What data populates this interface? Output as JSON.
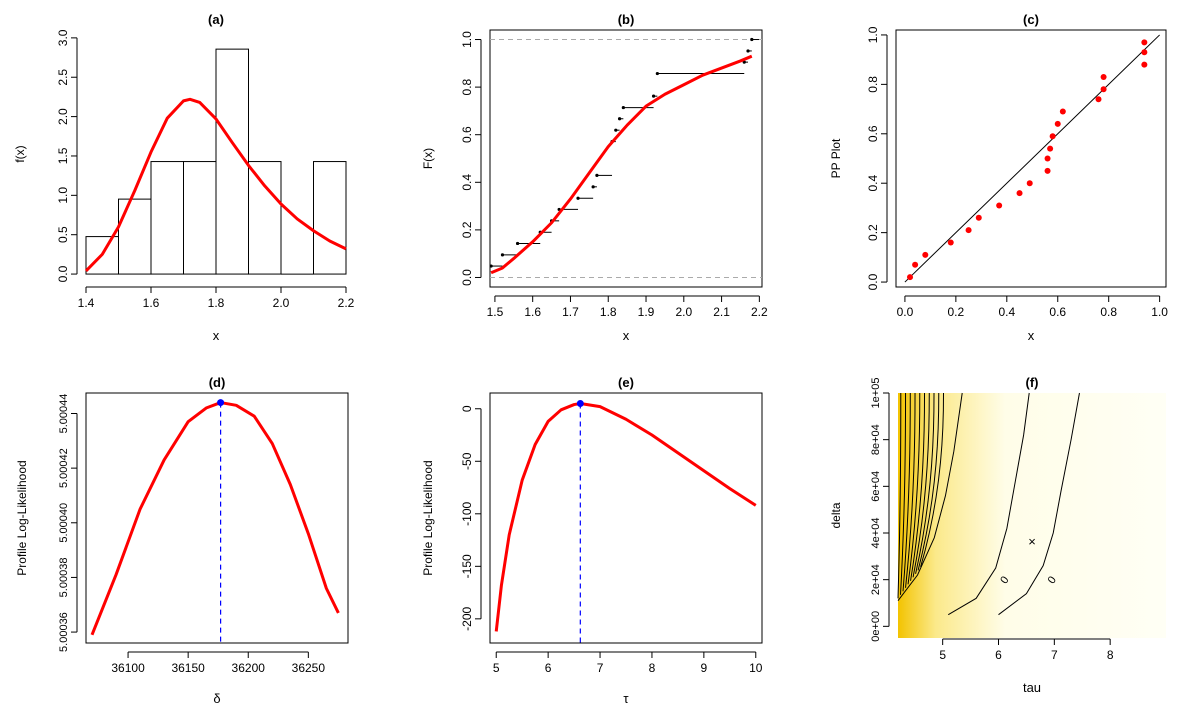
{
  "figure": {
    "background": "#ffffff"
  },
  "chart_data": [
    {
      "type": "histogram",
      "title": "(a)",
      "xlabel": "x",
      "ylabel": "f(x)",
      "xlim": [
        1.4,
        2.2
      ],
      "ylim": [
        0,
        3.0
      ],
      "xticks": [
        "1.4",
        "1.6",
        "1.8",
        "2.0",
        "2.2"
      ],
      "yticks": [
        "0.0",
        "0.5",
        "1.0",
        "1.5",
        "2.0",
        "2.5",
        "3.0"
      ],
      "bins": [
        {
          "from": 1.4,
          "to": 1.5,
          "density": 0.476
        },
        {
          "from": 1.5,
          "to": 1.6,
          "density": 0.952
        },
        {
          "from": 1.6,
          "to": 1.7,
          "density": 1.429
        },
        {
          "from": 1.7,
          "to": 1.8,
          "density": 1.429
        },
        {
          "from": 1.8,
          "to": 1.9,
          "density": 2.857
        },
        {
          "from": 1.9,
          "to": 2.0,
          "density": 1.429
        },
        {
          "from": 2.0,
          "to": 2.1,
          "density": 0
        },
        {
          "from": 2.1,
          "to": 2.2,
          "density": 1.429
        }
      ],
      "fitted_density": {
        "color": "#ff0000",
        "x": [
          1.4,
          1.45,
          1.5,
          1.55,
          1.6,
          1.65,
          1.7,
          1.72,
          1.75,
          1.8,
          1.85,
          1.9,
          1.95,
          2.0,
          2.05,
          2.1,
          2.15,
          2.2
        ],
        "y": [
          0.04,
          0.25,
          0.6,
          1.06,
          1.55,
          1.98,
          2.2,
          2.22,
          2.18,
          1.97,
          1.67,
          1.38,
          1.12,
          0.89,
          0.7,
          0.55,
          0.42,
          0.32
        ]
      }
    },
    {
      "type": "ecdf",
      "title": "(b)",
      "xlabel": "x",
      "ylabel": "F(x)",
      "xlim": [
        1.49,
        2.18
      ],
      "ylim": [
        0,
        1.0
      ],
      "xticks": [
        "1.5",
        "1.6",
        "1.7",
        "1.8",
        "1.9",
        "2.0",
        "2.1",
        "2.2"
      ],
      "yticks": [
        "0.0",
        "0.2",
        "0.4",
        "0.6",
        "0.8",
        "1.0"
      ],
      "reference_lines": [
        0,
        1
      ],
      "steps": [
        {
          "x": 1.49,
          "x_next": 1.52,
          "y": 0.048
        },
        {
          "x": 1.52,
          "x_next": 1.56,
          "y": 0.095
        },
        {
          "x": 1.56,
          "x_next": 1.62,
          "y": 0.143
        },
        {
          "x": 1.62,
          "x_next": 1.65,
          "y": 0.19
        },
        {
          "x": 1.65,
          "x_next": 1.67,
          "y": 0.238
        },
        {
          "x": 1.67,
          "x_next": 1.72,
          "y": 0.286
        },
        {
          "x": 1.72,
          "x_next": 1.76,
          "y": 0.333
        },
        {
          "x": 1.76,
          "x_next": 1.77,
          "y": 0.381
        },
        {
          "x": 1.77,
          "x_next": 1.81,
          "y": 0.429
        },
        {
          "x": 1.81,
          "x_next": 1.82,
          "y": 0.571
        },
        {
          "x": 1.82,
          "x_next": 1.83,
          "y": 0.619
        },
        {
          "x": 1.83,
          "x_next": 1.84,
          "y": 0.667
        },
        {
          "x": 1.84,
          "x_next": 1.92,
          "y": 0.714
        },
        {
          "x": 1.92,
          "x_next": 1.93,
          "y": 0.762
        },
        {
          "x": 1.93,
          "x_next": 2.16,
          "y": 0.857
        },
        {
          "x": 2.16,
          "x_next": 2.17,
          "y": 0.905
        },
        {
          "x": 2.17,
          "x_next": 2.18,
          "y": 0.952
        },
        {
          "x": 2.18,
          "x_next": 2.2,
          "y": 1.0
        }
      ],
      "fitted_cdf": {
        "color": "#ff0000",
        "x": [
          1.49,
          1.52,
          1.55,
          1.6,
          1.65,
          1.7,
          1.75,
          1.8,
          1.85,
          1.9,
          1.95,
          2.0,
          2.05,
          2.1,
          2.15,
          2.18
        ],
        "y": [
          0.02,
          0.04,
          0.08,
          0.15,
          0.23,
          0.33,
          0.44,
          0.55,
          0.64,
          0.72,
          0.77,
          0.81,
          0.85,
          0.88,
          0.91,
          0.93
        ]
      }
    },
    {
      "type": "scatter",
      "title": "(c)",
      "xlabel": "x",
      "ylabel": "PP Plot",
      "xlim": [
        0,
        1.0
      ],
      "ylim": [
        0,
        1.0
      ],
      "xticks": [
        "0.0",
        "0.2",
        "0.4",
        "0.6",
        "0.8",
        "1.0"
      ],
      "yticks": [
        "0.0",
        "0.2",
        "0.4",
        "0.6",
        "0.8",
        "1.0"
      ],
      "point_color": "#ff0000",
      "reference_line": {
        "from": [
          0,
          0
        ],
        "to": [
          1,
          1
        ]
      },
      "points": [
        [
          0.02,
          0.02
        ],
        [
          0.04,
          0.07
        ],
        [
          0.08,
          0.11
        ],
        [
          0.18,
          0.16
        ],
        [
          0.25,
          0.21
        ],
        [
          0.29,
          0.26
        ],
        [
          0.37,
          0.31
        ],
        [
          0.45,
          0.36
        ],
        [
          0.49,
          0.4
        ],
        [
          0.56,
          0.45
        ],
        [
          0.56,
          0.5
        ],
        [
          0.57,
          0.54
        ],
        [
          0.58,
          0.59
        ],
        [
          0.6,
          0.64
        ],
        [
          0.62,
          0.69
        ],
        [
          0.76,
          0.74
        ],
        [
          0.78,
          0.78
        ],
        [
          0.78,
          0.83
        ],
        [
          0.94,
          0.88
        ],
        [
          0.94,
          0.93
        ],
        [
          0.94,
          0.97
        ]
      ]
    },
    {
      "type": "line",
      "title": "(d)",
      "xlabel": "δ",
      "ylabel": "Profile Log-Likelihood",
      "xlim": [
        36070,
        36275
      ],
      "ylim": [
        5.000357,
        5.000445
      ],
      "xticks": [
        "36100",
        "36150",
        "36200",
        "36250"
      ],
      "yticks": [
        "5.00036",
        "5.00038",
        "5.00040",
        "5.00042",
        "5.00044"
      ],
      "curve_color": "#ff0000",
      "series_x": [
        36070,
        36090,
        36110,
        36130,
        36150,
        36165,
        36177,
        36190,
        36205,
        36220,
        36235,
        36250,
        36265,
        36275
      ],
      "series_y": [
        5.000359,
        5.000381,
        5.000405,
        5.000423,
        5.000437,
        5.000442,
        5.000444,
        5.000443,
        5.000439,
        5.000429,
        5.000414,
        5.000396,
        5.000376,
        5.000367
      ],
      "mle": {
        "x": 36177,
        "y": 5.000444,
        "marker_color": "#0000ff",
        "guide_color": "#0000ff"
      }
    },
    {
      "type": "line",
      "title": "(e)",
      "xlabel": "τ",
      "ylabel": "Profile Log-Likelihood",
      "xlim": [
        5,
        10
      ],
      "ylim": [
        -212,
        6
      ],
      "xticks": [
        "5",
        "6",
        "7",
        "8",
        "9",
        "10"
      ],
      "yticks": [
        "-200",
        "-150",
        "-100",
        "-50",
        "0"
      ],
      "curve_color": "#ff0000",
      "series_x": [
        5.0,
        5.1,
        5.25,
        5.5,
        5.75,
        6.0,
        6.25,
        6.5,
        6.62,
        7.0,
        7.5,
        8.0,
        8.5,
        9.0,
        9.5,
        10.0
      ],
      "series_y": [
        -212,
        -168,
        -120,
        -68,
        -34,
        -12,
        -1,
        4,
        5,
        2,
        -10,
        -25,
        -42,
        -59,
        -76,
        -92
      ],
      "mle": {
        "x": 6.62,
        "y": 5,
        "marker_color": "#0000ff",
        "guide_color": "#0000ff"
      }
    },
    {
      "type": "contour",
      "title": "(f)",
      "xlabel": "tau",
      "ylabel": "delta",
      "xlim": [
        4.2,
        9.0
      ],
      "ylim": [
        -5000,
        100000
      ],
      "xticks": [
        "5",
        "6",
        "7",
        "8"
      ],
      "yticks": [
        "0e+00",
        "2e+04",
        "4e+04",
        "6e+04",
        "8e+04",
        "1e+05"
      ],
      "contour_label": "0",
      "mle_marker": {
        "x": 6.6,
        "y": 36177,
        "symbol": "×"
      },
      "colors": {
        "high": "#f3c300",
        "mid": "#fbe98a",
        "low": "#fffde8",
        "paper": "#fffff5"
      }
    }
  ]
}
